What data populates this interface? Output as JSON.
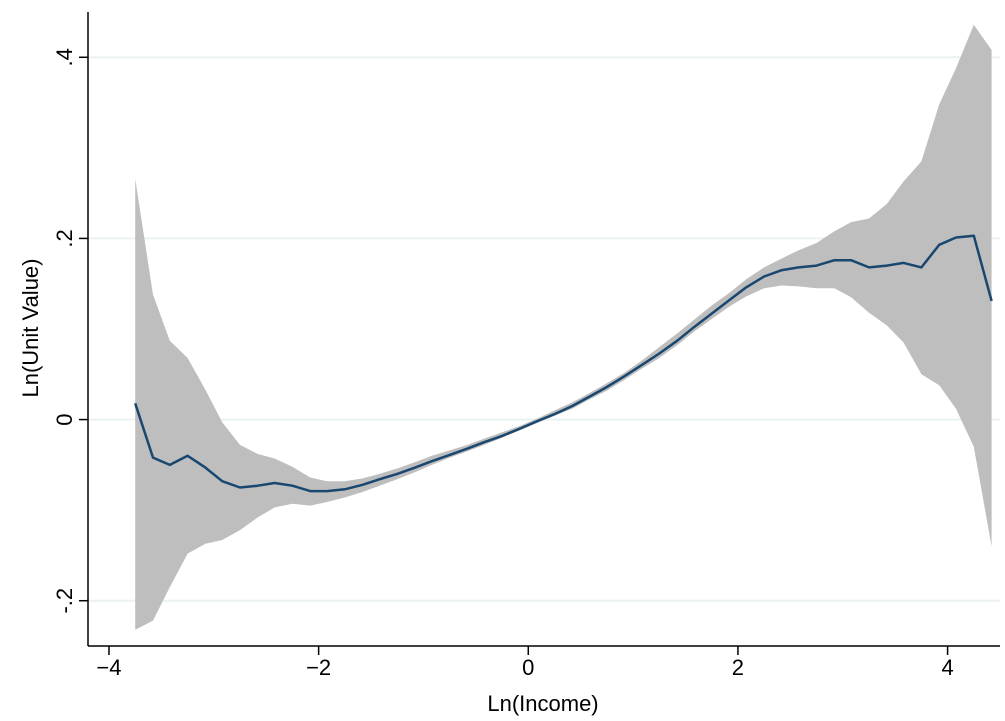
{
  "chart_data": {
    "type": "line",
    "title": "",
    "xlabel": "Ln(Income)",
    "ylabel": "Ln(Unit Value)",
    "xlim": [
      -4.2,
      4.5
    ],
    "ylim": [
      -0.25,
      0.45
    ],
    "grid": true,
    "legend": "none",
    "colors": {
      "line": "#1a476f",
      "band": "#bebebe",
      "grid": "#eaf2f3"
    },
    "x_ticks": [
      {
        "value": -4,
        "label": "−4"
      },
      {
        "value": -2,
        "label": "−2"
      },
      {
        "value": 0,
        "label": "0"
      },
      {
        "value": 2,
        "label": "2"
      },
      {
        "value": 4,
        "label": "4"
      }
    ],
    "y_ticks": [
      {
        "value": -0.2,
        "label": "-.2"
      },
      {
        "value": 0,
        "label": "0"
      },
      {
        "value": 0.2,
        "label": ".2"
      },
      {
        "value": 0.4,
        "label": ".4"
      }
    ],
    "x": [
      -3.75,
      -3.58,
      -3.42,
      -3.25,
      -3.08,
      -2.92,
      -2.75,
      -2.58,
      -2.42,
      -2.25,
      -2.08,
      -1.92,
      -1.75,
      -1.58,
      -1.42,
      -1.25,
      -1.08,
      -0.92,
      -0.75,
      -0.58,
      -0.42,
      -0.25,
      -0.08,
      0.08,
      0.25,
      0.42,
      0.58,
      0.75,
      0.92,
      1.08,
      1.25,
      1.42,
      1.58,
      1.75,
      1.92,
      2.08,
      2.25,
      2.42,
      2.58,
      2.75,
      2.92,
      3.08,
      3.25,
      3.42,
      3.58,
      3.75,
      3.92,
      4.08,
      4.25,
      4.42
    ],
    "series": [
      {
        "values": [
          0.018,
          -0.042,
          -0.05,
          -0.04,
          -0.053,
          -0.068,
          -0.075,
          -0.073,
          -0.07,
          -0.073,
          -0.079,
          -0.079,
          -0.077,
          -0.072,
          -0.066,
          -0.06,
          -0.053,
          -0.046,
          -0.039,
          -0.032,
          -0.025,
          -0.018,
          -0.01,
          -0.002,
          0.006,
          0.015,
          0.025,
          0.036,
          0.048,
          0.06,
          0.073,
          0.087,
          0.102,
          0.117,
          0.132,
          0.146,
          0.158,
          0.165,
          0.168,
          0.17,
          0.176,
          0.176,
          0.168,
          0.17,
          0.173,
          0.168,
          0.193,
          0.201,
          0.203,
          0.131
        ]
      }
    ],
    "band": {
      "lower": [
        -0.232,
        -0.222,
        -0.185,
        -0.148,
        -0.137,
        -0.133,
        -0.122,
        -0.108,
        -0.097,
        -0.093,
        -0.095,
        -0.091,
        -0.086,
        -0.08,
        -0.073,
        -0.066,
        -0.058,
        -0.05,
        -0.042,
        -0.035,
        -0.028,
        -0.02,
        -0.012,
        -0.004,
        0.004,
        0.012,
        0.022,
        0.032,
        0.044,
        0.056,
        0.068,
        0.082,
        0.097,
        0.111,
        0.125,
        0.136,
        0.145,
        0.148,
        0.147,
        0.145,
        0.145,
        0.135,
        0.118,
        0.104,
        0.085,
        0.05,
        0.038,
        0.012,
        -0.03,
        -0.14
      ],
      "upper": [
        0.266,
        0.138,
        0.087,
        0.068,
        0.033,
        -0.003,
        -0.028,
        -0.038,
        -0.043,
        -0.052,
        -0.064,
        -0.068,
        -0.068,
        -0.065,
        -0.06,
        -0.054,
        -0.047,
        -0.04,
        -0.034,
        -0.028,
        -0.021,
        -0.014,
        -0.007,
        0.001,
        0.01,
        0.019,
        0.029,
        0.04,
        0.052,
        0.065,
        0.08,
        0.095,
        0.11,
        0.126,
        0.14,
        0.155,
        0.168,
        0.178,
        0.187,
        0.195,
        0.208,
        0.218,
        0.222,
        0.238,
        0.263,
        0.285,
        0.348,
        0.388,
        0.436,
        0.408
      ]
    }
  }
}
